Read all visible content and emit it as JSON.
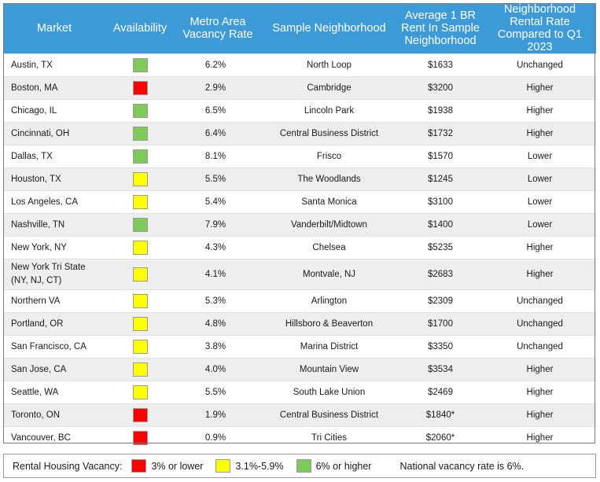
{
  "colors": {
    "header_bg": "#3c9ad7",
    "red": "#ff0000",
    "yellow": "#ffff00",
    "green": "#7ecb5a"
  },
  "table": {
    "headers": {
      "market": "Market",
      "availability": "Availability",
      "vacancy": "Metro Area Vacancy Rate",
      "neighborhood": "Sample Neighborhood",
      "rent": "Average 1 BR Rent In Sample Neighborhood",
      "change": "Neighborhood Rental Rate Compared to Q1 2023"
    },
    "rows": [
      {
        "market": "Austin, TX",
        "availability": "green",
        "vacancy": "6.2%",
        "neighborhood": "North Loop",
        "rent": "$1633",
        "change": "Unchanged"
      },
      {
        "market": "Boston, MA",
        "availability": "red",
        "vacancy": "2.9%",
        "neighborhood": "Cambridge",
        "rent": "$3200",
        "change": "Higher"
      },
      {
        "market": "Chicago, IL",
        "availability": "green",
        "vacancy": "6.5%",
        "neighborhood": "Lincoln Park",
        "rent": "$1938",
        "change": "Higher"
      },
      {
        "market": "Cincinnati, OH",
        "availability": "green",
        "vacancy": "6.4%",
        "neighborhood": "Central Business District",
        "rent": "$1732",
        "change": "Higher"
      },
      {
        "market": "Dallas, TX",
        "availability": "green",
        "vacancy": "8.1%",
        "neighborhood": "Frisco",
        "rent": "$1570",
        "change": "Lower"
      },
      {
        "market": "Houston, TX",
        "availability": "yellow",
        "vacancy": "5.5%",
        "neighborhood": "The Woodlands",
        "rent": "$1245",
        "change": "Lower"
      },
      {
        "market": "Los Angeles, CA",
        "availability": "yellow",
        "vacancy": "5.4%",
        "neighborhood": "Santa Monica",
        "rent": "$3100",
        "change": "Lower"
      },
      {
        "market": "Nashville, TN",
        "availability": "green",
        "vacancy": "7.9%",
        "neighborhood": "Vanderbilt/Midtown",
        "rent": "$1400",
        "change": "Lower"
      },
      {
        "market": "New York, NY",
        "availability": "yellow",
        "vacancy": "4.3%",
        "neighborhood": "Chelsea",
        "rent": "$5235",
        "change": "Higher"
      },
      {
        "market": "New York Tri State",
        "market2": "(NY, NJ, CT)",
        "availability": "yellow",
        "vacancy": "4.1%",
        "neighborhood": "Montvale, NJ",
        "rent": "$2683",
        "change": "Higher"
      },
      {
        "market": "Northern VA",
        "availability": "yellow",
        "vacancy": "5.3%",
        "neighborhood": "Arlington",
        "rent": "$2309",
        "change": "Unchanged"
      },
      {
        "market": "Portland, OR",
        "availability": "yellow",
        "vacancy": "4.8%",
        "neighborhood": "Hillsboro & Beaverton",
        "rent": "$1700",
        "change": "Unchanged"
      },
      {
        "market": "San Francisco, CA",
        "availability": "yellow",
        "vacancy": "3.8%",
        "neighborhood": "Marina District",
        "rent": "$3350",
        "change": "Unchanged"
      },
      {
        "market": "San Jose, CA",
        "availability": "yellow",
        "vacancy": "4.0%",
        "neighborhood": "Mountain View",
        "rent": "$3534",
        "change": "Higher"
      },
      {
        "market": "Seattle, WA",
        "availability": "yellow",
        "vacancy": "5.5%",
        "neighborhood": "South Lake Union",
        "rent": "$2469",
        "change": "Higher"
      },
      {
        "market": "Toronto, ON",
        "availability": "red",
        "vacancy": "1.9%",
        "neighborhood": "Central Business District",
        "rent": "$1840*",
        "change": "Higher"
      },
      {
        "market": "Vancouver, BC",
        "availability": "red",
        "vacancy": "0.9%",
        "neighborhood": "Tri Cities",
        "rent": "$2060*",
        "change": "Higher"
      }
    ]
  },
  "legend": {
    "title": "Rental Housing Vacancy:",
    "items": [
      {
        "color": "red",
        "label": "3% or lower"
      },
      {
        "color": "yellow",
        "label": "3.1%-5.9%"
      },
      {
        "color": "green",
        "label": "6% or higher"
      }
    ],
    "note": "National vacancy rate is 6%."
  }
}
